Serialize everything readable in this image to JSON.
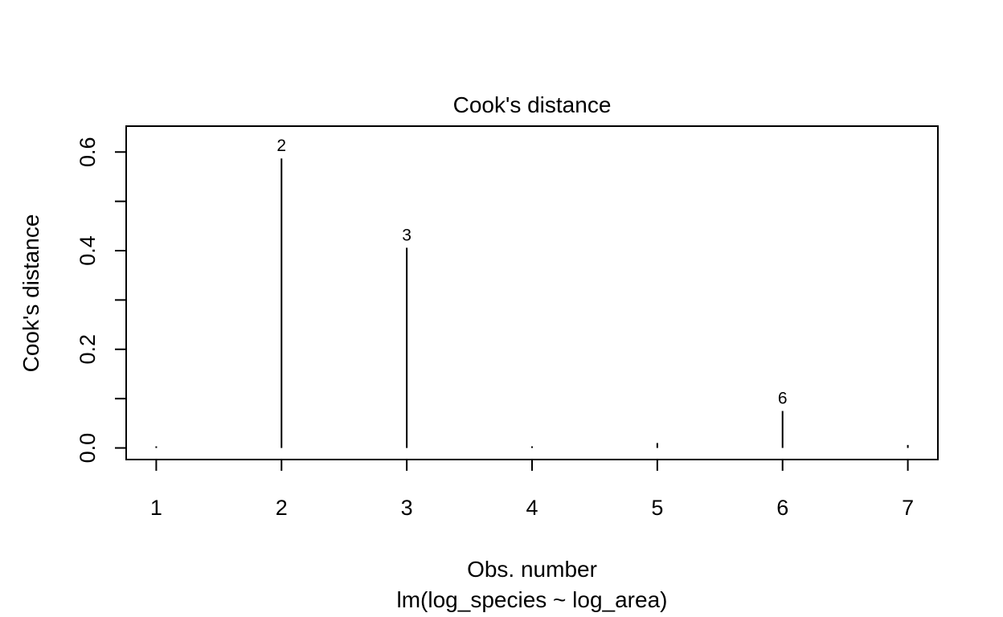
{
  "chart_data": {
    "type": "bar",
    "title": "Cook's distance",
    "xlabel": "Obs. number",
    "subtitle": "lm(log_species ~ log_area)",
    "ylabel": "Cook's distance",
    "x": [
      1,
      2,
      3,
      4,
      5,
      6,
      7
    ],
    "x_ticks": [
      "1",
      "2",
      "3",
      "4",
      "5",
      "6",
      "7"
    ],
    "values": [
      0.002,
      0.587,
      0.406,
      0.001,
      0.01,
      0.075,
      0.006
    ],
    "y_ticks": [
      "0.0",
      "0.2",
      "0.4",
      "0.6"
    ],
    "y_tick_values": [
      0.0,
      0.2,
      0.4,
      0.6
    ],
    "y_minor_ticks": [
      0.1,
      0.3,
      0.5
    ],
    "xlim": [
      0.76,
      7.24
    ],
    "ylim": [
      -0.0235,
      0.6525
    ],
    "grid": false,
    "labeled_points": [
      {
        "x": 2,
        "label": "2"
      },
      {
        "x": 3,
        "label": "3"
      },
      {
        "x": 6,
        "label": "6"
      }
    ],
    "color": "#000000"
  }
}
